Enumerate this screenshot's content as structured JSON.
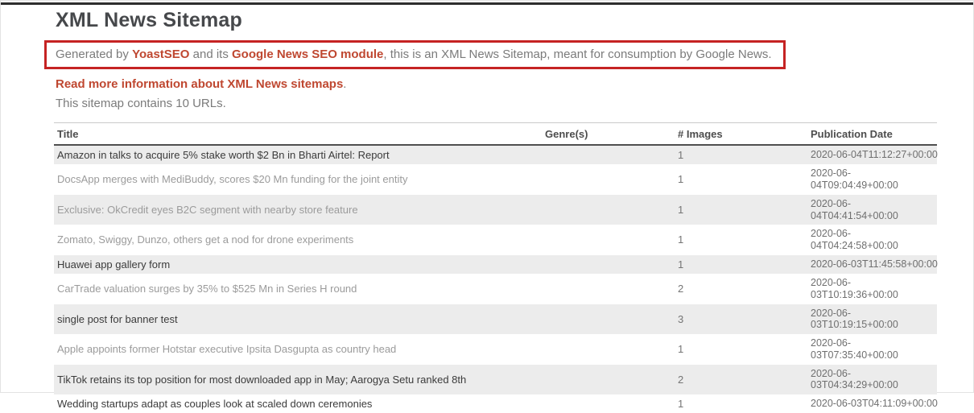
{
  "page": {
    "title": "XML News Sitemap",
    "intro": {
      "prefix": "Generated by ",
      "yoast_link": "YoastSEO",
      "middle": " and its ",
      "google_news_link": "Google News SEO module",
      "suffix": ", this is an XML News Sitemap, meant for consumption by Google News."
    },
    "read_more": {
      "link_text": "Read more information about XML News sitemaps",
      "period": "."
    },
    "count_text": "This sitemap contains 10 URLs."
  },
  "table": {
    "headers": [
      "Title",
      "Genre(s)",
      "# Images",
      "Publication Date"
    ],
    "rows": [
      {
        "title": "Amazon in talks to acquire 5% stake worth $2 Bn in Bharti Airtel: Report",
        "genres": "",
        "images": "1",
        "date_lines": [
          "2020-06-04T11:12:27+00:00"
        ],
        "title_style": "dark"
      },
      {
        "title": "DocsApp merges with MediBuddy, scores $20 Mn funding for the joint entity",
        "genres": "",
        "images": "1",
        "date_lines": [
          "2020-06-",
          "04T09:04:49+00:00"
        ],
        "title_style": "gray"
      },
      {
        "title": "Exclusive: OkCredit eyes B2C segment with nearby store feature",
        "genres": "",
        "images": "1",
        "date_lines": [
          "2020-06-",
          "04T04:41:54+00:00"
        ],
        "title_style": "gray"
      },
      {
        "title": "Zomato, Swiggy, Dunzo, others get a nod for drone experiments",
        "genres": "",
        "images": "1",
        "date_lines": [
          "2020-06-",
          "04T04:24:58+00:00"
        ],
        "title_style": "gray"
      },
      {
        "title": "Huawei app gallery form",
        "genres": "",
        "images": "1",
        "date_lines": [
          "2020-06-03T11:45:58+00:00"
        ],
        "title_style": "dark"
      },
      {
        "title": "CarTrade valuation surges by 35% to $525 Mn in Series H round",
        "genres": "",
        "images": "2",
        "date_lines": [
          "2020-06-",
          "03T10:19:36+00:00"
        ],
        "title_style": "gray"
      },
      {
        "title": "single post for banner test",
        "genres": "",
        "images": "3",
        "date_lines": [
          "2020-06-",
          "03T10:19:15+00:00"
        ],
        "title_style": "dark"
      },
      {
        "title": "Apple appoints former Hotstar executive Ipsita Dasgupta as country head",
        "genres": "",
        "images": "1",
        "date_lines": [
          "2020-06-",
          "03T07:35:40+00:00"
        ],
        "title_style": "gray"
      },
      {
        "title": "TikTok retains its top position for most downloaded app in May; Aarogya Setu ranked 8th",
        "genres": "",
        "images": "2",
        "date_lines": [
          "2020-06-",
          "03T04:34:29+00:00"
        ],
        "title_style": "dark"
      },
      {
        "title": "Wedding startups adapt as couples look at scaled down ceremonies",
        "genres": "",
        "images": "1",
        "date_lines": [
          "2020-06-03T04:11:09+00:00"
        ],
        "title_style": "dark"
      }
    ]
  },
  "colors": {
    "annotation_box_red": "#c52323",
    "link_red": "#bf4730",
    "heading_gray": "#46484b",
    "body_gray": "#7b7b7b",
    "row_alt_background": "#ececec",
    "title_dark": "#3b3b3b",
    "title_light_gray": "#9b9b9b",
    "top_rule_dark": "#2d2d2d"
  }
}
